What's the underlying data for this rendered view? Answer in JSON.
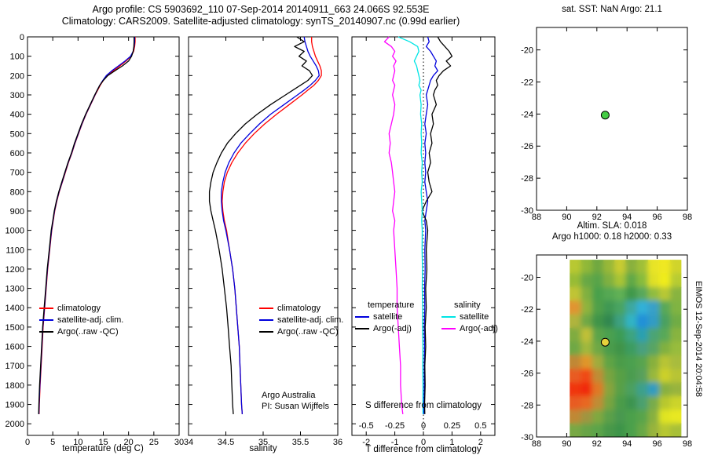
{
  "figure": {
    "title_line1": "Argo profile: CS 5903692_110 07-Sep-2014 20140911_663 24.066S 92.553E",
    "title_line2": "Climatology: CARS2009. Satellite-adjusted climatology: synTS_20140907.nc (0.99d earlier)",
    "side_note": "EIMOS 12-Sep-2014 20:04:58"
  },
  "chart_data": [
    {
      "id": "temperature_profile",
      "type": "line",
      "xlabel": "temperature (deg C)",
      "xlim": [
        0,
        30
      ],
      "xticks": [
        0,
        5,
        10,
        15,
        20,
        25,
        30
      ],
      "ylim": [
        0,
        2060
      ],
      "yticks": [
        0,
        100,
        200,
        300,
        400,
        500,
        600,
        700,
        800,
        900,
        1000,
        1100,
        1200,
        1300,
        1400,
        1500,
        1600,
        1700,
        1800,
        1900,
        2000
      ],
      "depths": [
        0,
        25,
        50,
        75,
        100,
        125,
        150,
        175,
        200,
        225,
        250,
        275,
        300,
        350,
        400,
        450,
        500,
        550,
        600,
        650,
        700,
        750,
        800,
        850,
        900,
        950,
        1000,
        1100,
        1200,
        1300,
        1400,
        1500,
        1600,
        1700,
        1800,
        1900,
        1950
      ],
      "series": [
        {
          "name": "climatology",
          "color": "#ff0000",
          "values": [
            21.3,
            21.3,
            21.2,
            21.0,
            20.5,
            19.5,
            18.3,
            17.0,
            15.8,
            15.0,
            14.4,
            13.9,
            13.4,
            12.5,
            11.6,
            10.8,
            10.1,
            9.4,
            8.8,
            8.1,
            7.5,
            6.9,
            6.3,
            5.8,
            5.4,
            5.1,
            4.8,
            4.4,
            4.0,
            3.7,
            3.4,
            3.1,
            2.9,
            2.7,
            2.5,
            2.35,
            2.3
          ]
        },
        {
          "name": "satellite-adj. clim.",
          "color": "#0000dd",
          "values": [
            21.2,
            21.2,
            21.1,
            20.9,
            20.4,
            19.3,
            18.0,
            16.7,
            15.6,
            14.9,
            14.3,
            13.8,
            13.35,
            12.45,
            11.55,
            10.75,
            10.05,
            9.35,
            8.75,
            8.05,
            7.45,
            6.85,
            6.25,
            5.75,
            5.35,
            5.05,
            4.75,
            4.35,
            3.95,
            3.65,
            3.35,
            3.05,
            2.85,
            2.65,
            2.45,
            2.3,
            2.25
          ]
        },
        {
          "name": "Argo(..raw -QC)",
          "color": "#000000",
          "values": [
            21.1,
            21.1,
            21.05,
            20.9,
            20.6,
            20.0,
            18.8,
            17.3,
            15.9,
            15.0,
            14.3,
            13.8,
            13.3,
            12.4,
            11.5,
            10.7,
            10.0,
            9.3,
            8.7,
            8.0,
            7.4,
            6.8,
            6.2,
            5.7,
            5.3,
            5.0,
            4.7,
            4.3,
            3.9,
            3.6,
            3.3,
            3.0,
            2.8,
            2.6,
            2.4,
            2.25,
            2.2
          ]
        }
      ]
    },
    {
      "id": "salinity_profile",
      "type": "line",
      "xlabel": "salinity",
      "xlim": [
        34,
        36
      ],
      "xticks": [
        34,
        34.5,
        35,
        35.5,
        36
      ],
      "ylim": [
        0,
        2060
      ],
      "yticks": [
        0,
        100,
        200,
        300,
        400,
        500,
        600,
        700,
        800,
        900,
        1000,
        1100,
        1200,
        1300,
        1400,
        1500,
        1600,
        1700,
        1800,
        1900,
        2000
      ],
      "notes": {
        "line1": "Argo Australia",
        "line2": "PI: Susan Wijffels"
      },
      "depths": [
        0,
        25,
        50,
        75,
        100,
        125,
        150,
        175,
        200,
        225,
        250,
        275,
        300,
        350,
        400,
        450,
        500,
        550,
        600,
        650,
        700,
        750,
        800,
        850,
        900,
        950,
        1000,
        1100,
        1200,
        1300,
        1400,
        1500,
        1600,
        1700,
        1800,
        1900,
        1950
      ],
      "series": [
        {
          "name": "climatology",
          "color": "#ff0000",
          "values": [
            35.65,
            35.65,
            35.66,
            35.68,
            35.7,
            35.73,
            35.76,
            35.78,
            35.78,
            35.74,
            35.68,
            35.6,
            35.52,
            35.35,
            35.18,
            35.02,
            34.88,
            34.76,
            34.66,
            34.58,
            34.52,
            34.48,
            34.46,
            34.45,
            34.46,
            34.48,
            34.51,
            34.55,
            34.59,
            34.62,
            34.64,
            34.66,
            34.68,
            34.69,
            34.7,
            34.71,
            34.72
          ]
        },
        {
          "name": "satellite-adj. clim.",
          "color": "#0000dd",
          "values": [
            35.55,
            35.56,
            35.58,
            35.6,
            35.63,
            35.67,
            35.71,
            35.74,
            35.75,
            35.7,
            35.63,
            35.55,
            35.46,
            35.28,
            35.1,
            34.95,
            34.82,
            34.7,
            34.61,
            34.54,
            34.49,
            34.46,
            34.44,
            34.44,
            34.45,
            34.47,
            34.5,
            34.55,
            34.59,
            34.62,
            34.64,
            34.66,
            34.68,
            34.69,
            34.7,
            34.71,
            34.72
          ]
        },
        {
          "name": "Argo(..raw -QC)",
          "color": "#000000",
          "values": [
            35.45,
            35.55,
            35.42,
            35.55,
            35.48,
            35.58,
            35.52,
            35.62,
            35.66,
            35.6,
            35.5,
            35.4,
            35.3,
            35.1,
            34.92,
            34.76,
            34.63,
            34.52,
            34.44,
            34.38,
            34.33,
            34.3,
            34.28,
            34.28,
            34.3,
            34.33,
            34.36,
            34.41,
            34.45,
            34.48,
            34.51,
            34.53,
            34.55,
            34.57,
            34.58,
            34.59,
            34.6
          ]
        }
      ]
    },
    {
      "id": "difference_profile",
      "type": "line",
      "xlabel": "T difference from climatology",
      "inner_label": "S difference from climatology",
      "legend_headers": [
        "temperature",
        "salinity"
      ],
      "xlim": [
        -2.5,
        2.5
      ],
      "xticks": [
        -2,
        -1,
        0,
        1,
        2
      ],
      "s_axis_labels": [
        "-0.5",
        "-0.25",
        "0",
        "0.25",
        "0.5"
      ],
      "s_axis_positions": [
        -2,
        -1,
        0,
        1,
        2
      ],
      "zero_line": true,
      "ylim": [
        0,
        2060
      ],
      "yticks": [
        0,
        100,
        200,
        300,
        400,
        500,
        600,
        700,
        800,
        900,
        1000,
        1100,
        1200,
        1300,
        1400,
        1500,
        1600,
        1700,
        1800,
        1900,
        2000
      ],
      "depths": [
        0,
        25,
        50,
        75,
        100,
        125,
        150,
        175,
        200,
        225,
        250,
        275,
        300,
        350,
        400,
        450,
        500,
        550,
        600,
        650,
        700,
        750,
        800,
        850,
        900,
        950,
        1000,
        1100,
        1200,
        1300,
        1400,
        1500,
        1600,
        1700,
        1800,
        1900,
        1950
      ],
      "series": [
        {
          "name": "satellite",
          "group": "temperature",
          "color": "#0000dd",
          "values": [
            0.15,
            0.2,
            0.1,
            0.25,
            0.35,
            0.45,
            0.4,
            0.5,
            0.35,
            0.25,
            0.2,
            0.15,
            0.1,
            0.15,
            0.1,
            0.05,
            0.1,
            0.05,
            0.08,
            0.05,
            0.08,
            0.05,
            0.1,
            0.15,
            0.1,
            0.05,
            0.08,
            0.05,
            0.06,
            0.04,
            0.05,
            0.03,
            0.04,
            0.03,
            0.03,
            0.02,
            0.02
          ]
        },
        {
          "name": "Argo(-adj)",
          "group": "temperature",
          "color": "#000000",
          "values": [
            0.5,
            0.6,
            0.75,
            0.9,
            1.0,
            0.8,
            0.95,
            0.7,
            0.55,
            0.45,
            0.5,
            0.4,
            0.35,
            0.45,
            0.3,
            0.35,
            0.25,
            0.3,
            0.2,
            0.25,
            0.15,
            0.2,
            0.3,
            0.1,
            -0.05,
            0.1,
            0.15,
            0.1,
            0.12,
            0.08,
            0.1,
            0.06,
            0.08,
            0.05,
            0.06,
            0.04,
            0.05
          ]
        },
        {
          "name": "satellite",
          "group": "salinity",
          "color": "#00e5e5",
          "scale": 4,
          "values": [
            -0.22,
            -0.12,
            -0.05,
            -0.04,
            -0.06,
            -0.08,
            -0.06,
            -0.05,
            -0.04,
            -0.03,
            -0.04,
            -0.02,
            -0.03,
            -0.02,
            -0.025,
            -0.015,
            -0.02,
            -0.015,
            -0.02,
            -0.01,
            -0.015,
            -0.01,
            -0.02,
            -0.015,
            -0.01,
            -0.015,
            -0.01,
            -0.012,
            -0.008,
            -0.01,
            -0.006,
            -0.008,
            -0.005,
            -0.006,
            -0.004,
            -0.005,
            -0.004
          ]
        },
        {
          "name": "Argo(-adj)",
          "group": "salinity",
          "color": "#ff00ff",
          "scale": 4,
          "values": [
            -0.3,
            -0.34,
            -0.28,
            -0.25,
            -0.27,
            -0.24,
            -0.26,
            -0.25,
            -0.26,
            -0.27,
            -0.25,
            -0.26,
            -0.27,
            -0.25,
            -0.26,
            -0.28,
            -0.3,
            -0.29,
            -0.3,
            -0.28,
            -0.27,
            -0.26,
            -0.25,
            -0.26,
            -0.27,
            -0.25,
            -0.26,
            -0.25,
            -0.24,
            -0.23,
            -0.23,
            -0.22,
            -0.21,
            -0.2,
            -0.2,
            -0.19,
            -0.18
          ]
        }
      ]
    },
    {
      "id": "sst_map",
      "type": "scatter",
      "title": "sat. SST: NaN Argo: 21.1",
      "xlim": [
        88,
        98
      ],
      "xticks": [
        88,
        90,
        92,
        94,
        96,
        98
      ],
      "ylim": [
        -18.6,
        -30
      ],
      "yticks": [
        -20,
        -22,
        -24,
        -26,
        -28,
        -30
      ],
      "marker": {
        "lon": 92.553,
        "lat": -24.066,
        "color": "#44cc44"
      }
    },
    {
      "id": "sla_map",
      "type": "heatmap",
      "title_line1": "Altim. SLA: 0.018",
      "title_line2": "Argo h1000: 0.18 h2000: 0.33",
      "xlim": [
        88,
        98
      ],
      "xticks": [
        88,
        90,
        92,
        94,
        96,
        98
      ],
      "ylim": [
        -18.6,
        -30
      ],
      "yticks": [
        -20,
        -22,
        -24,
        -26,
        -28,
        -30
      ],
      "marker": {
        "lon": 92.553,
        "lat": -24.066,
        "color": "#e6d23c"
      },
      "heatmap": {
        "lon_range": [
          90.2,
          97.6
        ],
        "lat_range": [
          -18.9,
          -30
        ],
        "cols": 10,
        "rows": 13,
        "colors": [
          "#b8c832",
          "#90b838",
          "#70a840",
          "#98b838",
          "#c8cc30",
          "#88b03c",
          "#a0c038",
          "#e8e428",
          "#f0e820",
          "#d0d42c",
          "#98bc34",
          "#68a844",
          "#58a448",
          "#80b040",
          "#a8c434",
          "#60a846",
          "#88bc3c",
          "#e0e028",
          "#f0ec1c",
          "#b8cc30",
          "#c0c434",
          "#80b040",
          "#48a04c",
          "#55a852",
          "#60b054",
          "#40984c",
          "#58a85c",
          "#90bc40",
          "#b8c834",
          "#88b440",
          "#e09430",
          "#90b43c",
          "#50a04a",
          "#409852",
          "#48a462",
          "#3ca8a0",
          "#30b0d8",
          "#38a0c8",
          "#58a858",
          "#80b442",
          "#b0b43c",
          "#70a844",
          "#409448",
          "#308850",
          "#3ca080",
          "#30b4c4",
          "#2090d8",
          "#309cc4",
          "#48a060",
          "#70ac44",
          "#80ac40",
          "#c0c038",
          "#5ca448",
          "#4ca050",
          "#3c9c54",
          "#3ca480",
          "#2ca0b0",
          "#4ca474",
          "#58a858",
          "#88b440",
          "#70a844",
          "#a0b83c",
          "#70a844",
          "#4c9c4c",
          "#409448",
          "#3c9c60",
          "#48a080",
          "#58a464",
          "#80b040",
          "#98bc3c",
          "#c08834",
          "#e0962c",
          "#a0ac3c",
          "#60a444",
          "#4c9c48",
          "#4ca050",
          "#58a450",
          "#88b03c",
          "#b8c434",
          "#a8bc3c",
          "#e85c20",
          "#f04818",
          "#c08c34",
          "#78a440",
          "#58a044",
          "#4c9c50",
          "#58a05c",
          "#98b83c",
          "#ccd02c",
          "#b8c434",
          "#f03410",
          "#f02c0c",
          "#e07828",
          "#88a43c",
          "#58a046",
          "#4ca060",
          "#3ca08c",
          "#309cc0",
          "#88b040",
          "#98b43c",
          "#e85c20",
          "#e86824",
          "#c08c34",
          "#78a440",
          "#4c9c48",
          "#3c9450",
          "#4ca070",
          "#78ac4c",
          "#b8c82e",
          "#ccd42a",
          "#c08834",
          "#a09440",
          "#80a840",
          "#5ca048",
          "#489850",
          "#4ca04c",
          "#58a44c",
          "#88b040",
          "#e0e424",
          "#e8e822",
          "#78a844",
          "#68a446",
          "#5ca448",
          "#489848",
          "#3c9448",
          "#4ca04c",
          "#68a846",
          "#98b43c",
          "#b8c832",
          "#a8c038"
        ]
      }
    }
  ]
}
